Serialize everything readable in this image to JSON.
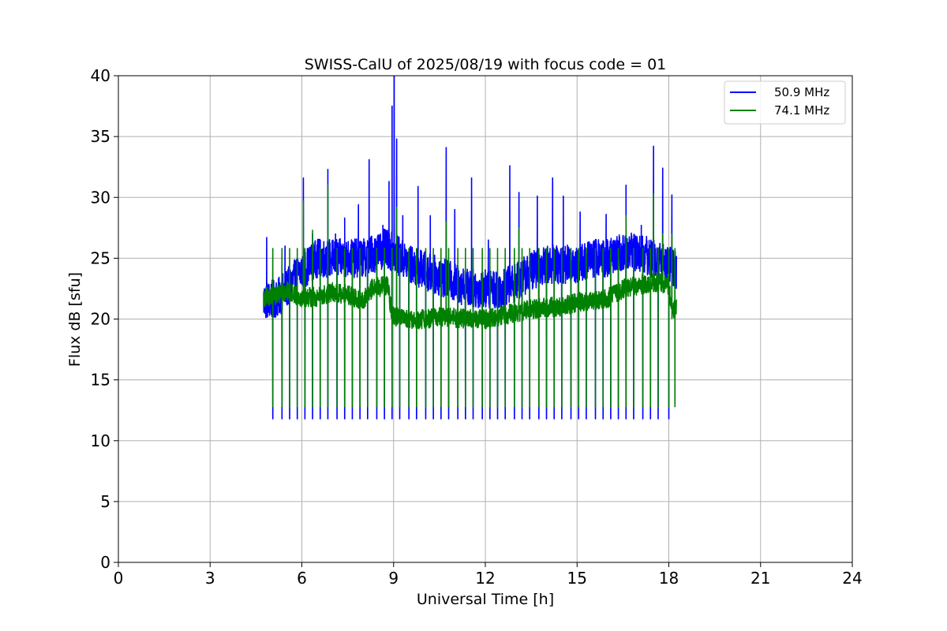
{
  "chart_data": {
    "type": "line",
    "title": "SWISS-CalU of 2025/08/19 with focus code = 01",
    "xlabel": "Universal Time [h]",
    "ylabel": "Flux dB [sfu]",
    "xlim": [
      0,
      24
    ],
    "ylim": [
      0,
      40
    ],
    "xticks": [
      "0",
      "3",
      "6",
      "9",
      "12",
      "15",
      "18",
      "21",
      "24"
    ],
    "yticks": [
      "0",
      "5",
      "10",
      "15",
      "20",
      "25",
      "30",
      "35",
      "40"
    ],
    "grid": true,
    "legend_position": "top-right",
    "data_start_h": 4.75,
    "data_end_h": 18.25,
    "series": [
      {
        "name": "50.9 MHz",
        "color": "#0000ff",
        "baseline": [
          [
            4.75,
            21.5
          ],
          [
            5.2,
            21.7
          ],
          [
            5.5,
            22.5
          ],
          [
            6.0,
            24.0
          ],
          [
            6.5,
            25.0
          ],
          [
            7.5,
            25.0
          ],
          [
            8.0,
            25.0
          ],
          [
            8.7,
            25.8
          ],
          [
            9.0,
            25.5
          ],
          [
            9.5,
            24.5
          ],
          [
            10.0,
            24.0
          ],
          [
            10.5,
            23.5
          ],
          [
            11.0,
            23.0
          ],
          [
            11.5,
            22.5
          ],
          [
            12.0,
            22.5
          ],
          [
            12.5,
            22.5
          ],
          [
            13.0,
            23.0
          ],
          [
            13.5,
            24.0
          ],
          [
            14.0,
            24.5
          ],
          [
            14.5,
            24.5
          ],
          [
            15.0,
            24.5
          ],
          [
            15.5,
            25.0
          ],
          [
            16.0,
            25.0
          ],
          [
            16.5,
            25.5
          ],
          [
            17.0,
            25.5
          ],
          [
            17.5,
            25.0
          ],
          [
            18.0,
            24.5
          ],
          [
            18.25,
            24.0
          ]
        ],
        "noise": 1.6,
        "calibration_dip": 11.8,
        "calibration_times_h": [
          4.75,
          5.05,
          5.35,
          5.6,
          5.85,
          6.1,
          6.35,
          6.6,
          6.85,
          7.15,
          7.4,
          7.65,
          7.9,
          8.15,
          8.45,
          8.7,
          8.95,
          9.2,
          9.5,
          9.75,
          10.05,
          10.3,
          10.55,
          10.8,
          11.1,
          11.35,
          11.6,
          11.9,
          12.15,
          12.4,
          12.65,
          12.95,
          13.2,
          13.45,
          13.75,
          14.0,
          14.25,
          14.5,
          14.8,
          15.05,
          15.3,
          15.6,
          15.85,
          16.1,
          16.35,
          16.6,
          16.85,
          17.15,
          17.4,
          17.65,
          18.0
        ],
        "peaks": [
          [
            4.85,
            26.7
          ],
          [
            5.45,
            26.0
          ],
          [
            6.05,
            31.6
          ],
          [
            6.35,
            27.0
          ],
          [
            6.85,
            32.3
          ],
          [
            7.1,
            27.0
          ],
          [
            7.4,
            28.3
          ],
          [
            7.85,
            29.4
          ],
          [
            8.2,
            33.1
          ],
          [
            8.65,
            27.7
          ],
          [
            8.85,
            31.3
          ],
          [
            8.95,
            37.5
          ],
          [
            9.02,
            40.0
          ],
          [
            9.1,
            34.8
          ],
          [
            9.3,
            28.5
          ],
          [
            9.8,
            30.9
          ],
          [
            10.2,
            28.5
          ],
          [
            10.72,
            34.1
          ],
          [
            11.0,
            29.0
          ],
          [
            11.55,
            31.6
          ],
          [
            12.1,
            26.5
          ],
          [
            12.8,
            32.6
          ],
          [
            13.1,
            30.4
          ],
          [
            13.7,
            30.1
          ],
          [
            14.2,
            31.6
          ],
          [
            14.55,
            30.1
          ],
          [
            15.1,
            28.8
          ],
          [
            15.5,
            25.8
          ],
          [
            15.95,
            28.6
          ],
          [
            16.6,
            31.0
          ],
          [
            17.1,
            27.7
          ],
          [
            17.5,
            34.2
          ],
          [
            17.8,
            32.4
          ],
          [
            18.1,
            30.2
          ]
        ]
      },
      {
        "name": "74.1 MHz",
        "color": "#008000",
        "baseline": [
          [
            4.75,
            21.8
          ],
          [
            5.2,
            22.0
          ],
          [
            5.5,
            22.3
          ],
          [
            6.0,
            21.8
          ],
          [
            6.5,
            21.8
          ],
          [
            7.0,
            22.2
          ],
          [
            7.5,
            22.0
          ],
          [
            8.0,
            21.5
          ],
          [
            8.3,
            22.5
          ],
          [
            8.8,
            22.8
          ],
          [
            8.95,
            20.3
          ],
          [
            9.5,
            19.9
          ],
          [
            10.0,
            20.0
          ],
          [
            10.5,
            20.2
          ],
          [
            11.0,
            20.1
          ],
          [
            11.5,
            20.0
          ],
          [
            12.0,
            20.0
          ],
          [
            12.5,
            20.3
          ],
          [
            13.0,
            20.5
          ],
          [
            13.5,
            20.8
          ],
          [
            14.0,
            21.0
          ],
          [
            14.5,
            21.0
          ],
          [
            15.0,
            21.4
          ],
          [
            15.5,
            21.5
          ],
          [
            16.0,
            21.7
          ],
          [
            16.5,
            22.5
          ],
          [
            17.0,
            22.8
          ],
          [
            17.5,
            23.0
          ],
          [
            18.0,
            22.8
          ],
          [
            18.1,
            20.8
          ],
          [
            18.25,
            21.0
          ]
        ],
        "noise": 0.8,
        "calibration_dip": 12.8,
        "calibration_top": 25.8,
        "calibration_times_h": [
          4.75,
          5.05,
          5.35,
          5.6,
          5.85,
          6.1,
          6.35,
          6.6,
          6.85,
          7.15,
          7.4,
          7.65,
          7.9,
          8.15,
          8.45,
          8.7,
          8.95,
          9.2,
          9.5,
          9.75,
          10.05,
          10.3,
          10.55,
          10.8,
          11.1,
          11.35,
          11.6,
          11.9,
          12.15,
          12.4,
          12.65,
          12.95,
          13.2,
          13.45,
          13.75,
          14.0,
          14.25,
          14.5,
          14.8,
          15.05,
          15.3,
          15.6,
          15.85,
          16.1,
          16.35,
          16.6,
          16.85,
          17.15,
          17.4,
          17.65,
          18.0,
          18.2
        ],
        "peaks": [
          [
            6.05,
            29.7
          ],
          [
            6.85,
            31.0
          ],
          [
            6.35,
            27.3
          ],
          [
            9.1,
            29.2
          ],
          [
            10.72,
            28.0
          ],
          [
            13.1,
            27.5
          ],
          [
            16.6,
            28.5
          ],
          [
            17.5,
            30.3
          ],
          [
            17.8,
            27.0
          ],
          [
            18.1,
            27.0
          ]
        ]
      }
    ]
  }
}
